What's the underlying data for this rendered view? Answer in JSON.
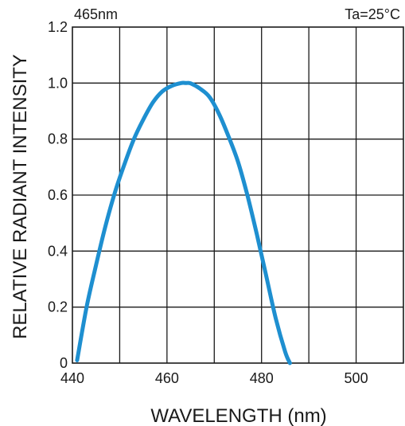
{
  "chart_data": {
    "type": "line",
    "title_left": "465nm",
    "title_right": "Ta=25°C",
    "xlabel": "WAVELENGTH (nm)",
    "ylabel": "RELATIVE RADIANT INTENSITY",
    "xlim": [
      440,
      510
    ],
    "ylim": [
      0,
      1.2
    ],
    "x_ticks": [
      440,
      460,
      480,
      500
    ],
    "x_tick_labels": [
      "440",
      "460",
      "480",
      "500"
    ],
    "y_ticks": [
      0,
      0.2,
      0.4,
      0.6,
      0.8,
      1.0,
      1.2
    ],
    "y_tick_labels": [
      "0",
      "0.2",
      "0.4",
      "0.6",
      "0.8",
      "1.0",
      "1.2"
    ],
    "grid": true,
    "color": "#1e8fd0",
    "series": [
      {
        "x": [
          441,
          443,
          445,
          447,
          449,
          451,
          453,
          455,
          457,
          459,
          461,
          463,
          464,
          465,
          467,
          469,
          471,
          473,
          475,
          477,
          479,
          481,
          483,
          485,
          486
        ],
        "values": [
          0.01,
          0.2,
          0.35,
          0.49,
          0.61,
          0.71,
          0.8,
          0.87,
          0.93,
          0.97,
          0.99,
          1.0,
          1.0,
          0.999,
          0.98,
          0.95,
          0.89,
          0.81,
          0.72,
          0.6,
          0.46,
          0.31,
          0.16,
          0.04,
          0.0
        ]
      }
    ]
  }
}
